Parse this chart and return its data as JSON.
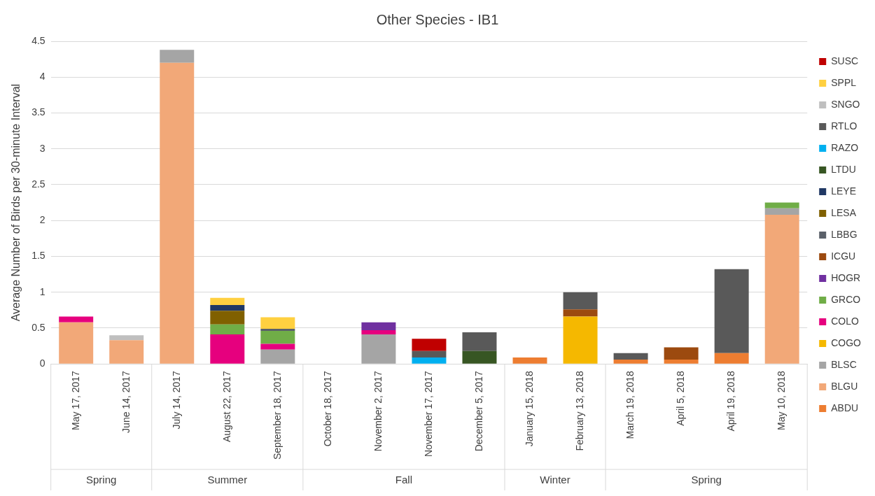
{
  "chart_data": {
    "type": "bar",
    "title": "Other Species - IB1",
    "ylabel": "Average Number of Birds per 30-minute Interval",
    "categories": [
      "May 17, 2017",
      "June 14, 2017",
      "July 14, 2017",
      "August 22, 2017",
      "September 18, 2017",
      "October 18, 2017",
      "November 2, 2017",
      "November 17, 2017",
      "December 5, 2017",
      "January 15, 2018",
      "February 13, 2018",
      "March 19, 2018",
      "April 5, 2018",
      "April 19, 2018",
      "May 10, 2018"
    ],
    "stacked": true,
    "ylim": [
      0,
      4.5
    ],
    "yticks": [
      0,
      0.5,
      1,
      1.5,
      2,
      2.5,
      3,
      3.5,
      4,
      4.5
    ],
    "grid": "y",
    "legend": "right",
    "annotations": [
      "Spring",
      "Summer",
      "Fall",
      "Winter",
      "Spring"
    ],
    "series": [
      {
        "name": "ABDU",
        "color": "#ed7d31",
        "values": [
          null,
          null,
          null,
          null,
          null,
          null,
          null,
          null,
          null,
          0.09,
          null,
          0.06,
          0.06,
          0.15,
          null
        ]
      },
      {
        "name": "BLGU",
        "color": "#f2a878",
        "values": [
          0.58,
          0.33,
          4.2,
          null,
          null,
          null,
          null,
          null,
          null,
          null,
          null,
          null,
          null,
          null,
          2.08
        ]
      },
      {
        "name": "BLSC",
        "color": "#a5a5a5",
        "values": [
          null,
          null,
          0.18,
          null,
          0.2,
          null,
          0.41,
          null,
          null,
          null,
          null,
          null,
          null,
          null,
          0.09
        ]
      },
      {
        "name": "COGO",
        "color": "#f5b800",
        "values": [
          null,
          null,
          null,
          null,
          null,
          null,
          null,
          null,
          null,
          null,
          0.66,
          null,
          null,
          null,
          null
        ]
      },
      {
        "name": "COLO",
        "color": "#e6007e",
        "values": [
          0.08,
          null,
          null,
          0.41,
          0.08,
          null,
          0.06,
          null,
          null,
          null,
          null,
          null,
          null,
          null,
          null
        ]
      },
      {
        "name": "GRCO",
        "color": "#70ad47",
        "values": [
          null,
          null,
          null,
          0.14,
          0.18,
          null,
          null,
          null,
          null,
          null,
          null,
          null,
          null,
          null,
          0.08
        ]
      },
      {
        "name": "HOGR",
        "color": "#7030a0",
        "values": [
          null,
          null,
          null,
          null,
          null,
          null,
          0.11,
          null,
          null,
          null,
          null,
          null,
          null,
          null,
          null
        ]
      },
      {
        "name": "ICGU",
        "color": "#9c4a0f",
        "values": [
          null,
          null,
          null,
          null,
          null,
          null,
          null,
          null,
          null,
          null,
          0.1,
          null,
          0.17,
          null,
          null
        ]
      },
      {
        "name": "LBBG",
        "color": "#5a6069",
        "values": [
          null,
          null,
          null,
          null,
          0.03,
          null,
          null,
          null,
          null,
          null,
          null,
          null,
          null,
          null,
          null
        ]
      },
      {
        "name": "LESA",
        "color": "#806000",
        "values": [
          null,
          null,
          null,
          0.19,
          null,
          null,
          null,
          null,
          null,
          null,
          null,
          null,
          null,
          null,
          null
        ]
      },
      {
        "name": "LEYE",
        "color": "#203864",
        "values": [
          null,
          null,
          null,
          0.08,
          null,
          null,
          null,
          null,
          null,
          null,
          null,
          null,
          null,
          null,
          null
        ]
      },
      {
        "name": "LTDU",
        "color": "#375623",
        "values": [
          null,
          null,
          null,
          null,
          null,
          null,
          null,
          null,
          0.18,
          null,
          null,
          null,
          null,
          null,
          null
        ]
      },
      {
        "name": "RAZO",
        "color": "#00b0f0",
        "values": [
          null,
          null,
          null,
          null,
          null,
          null,
          null,
          0.09,
          null,
          null,
          null,
          null,
          null,
          null,
          null
        ]
      },
      {
        "name": "RTLO",
        "color": "#595959",
        "values": [
          null,
          null,
          null,
          null,
          null,
          null,
          null,
          0.09,
          0.26,
          null,
          0.24,
          0.09,
          null,
          1.17,
          null
        ]
      },
      {
        "name": "SNGO",
        "color": "#bfbfbf",
        "values": [
          null,
          0.07,
          null,
          null,
          null,
          null,
          null,
          null,
          null,
          null,
          null,
          null,
          null,
          null,
          null
        ]
      },
      {
        "name": "SPPL",
        "color": "#ffd040",
        "values": [
          null,
          null,
          null,
          0.1,
          0.16,
          null,
          null,
          null,
          null,
          null,
          null,
          null,
          null,
          null,
          null
        ]
      },
      {
        "name": "SUSC",
        "color": "#c00000",
        "values": [
          null,
          null,
          null,
          null,
          null,
          null,
          null,
          0.17,
          null,
          null,
          null,
          null,
          null,
          null,
          null
        ]
      }
    ]
  }
}
